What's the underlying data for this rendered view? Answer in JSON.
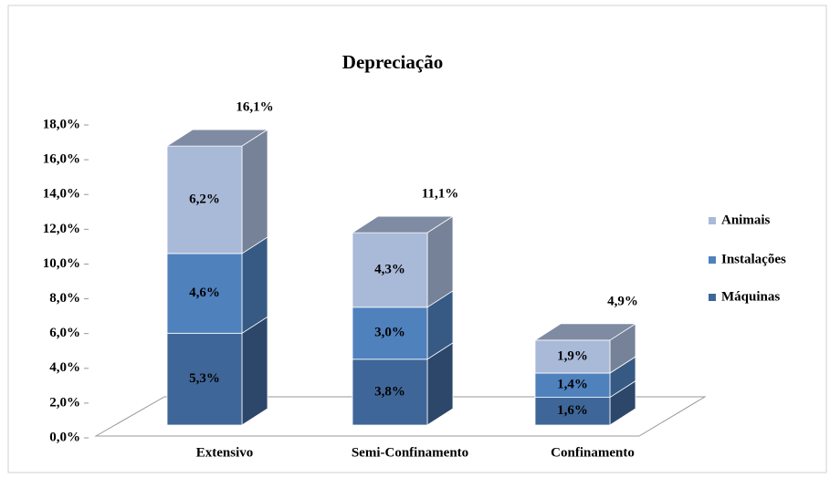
{
  "chart_data": {
    "type": "bar3d_stacked",
    "title": "Depreciação",
    "categories": [
      "Extensivo",
      "Semi-Confinamento",
      "Confinamento"
    ],
    "series": [
      {
        "name": "Máquinas",
        "color": "#3f6698",
        "values": [
          5.3,
          3.8,
          1.6
        ],
        "value_labels": [
          "5,3%",
          "3,8%",
          "1,6%"
        ]
      },
      {
        "name": "Instalações",
        "color": "#4f81bd",
        "values": [
          4.6,
          3.0,
          1.4
        ],
        "value_labels": [
          "4,6%",
          "3,0%",
          "1,4%"
        ]
      },
      {
        "name": "Animais",
        "color": "#a9b9d8",
        "values": [
          6.2,
          4.3,
          1.9
        ],
        "value_labels": [
          "6,2%",
          "4,3%",
          "1,9%"
        ]
      }
    ],
    "totals": {
      "values": [
        16.1,
        11.1,
        4.9
      ],
      "value_labels": [
        "16,1%",
        "11,1%",
        "4,9%"
      ]
    },
    "ylim": [
      0,
      18
    ],
    "yticks": [
      {
        "value": 0,
        "label": "0,0%"
      },
      {
        "value": 2,
        "label": "2,0%"
      },
      {
        "value": 4,
        "label": "4,0%"
      },
      {
        "value": 6,
        "label": "6,0%"
      },
      {
        "value": 8,
        "label": "8,0%"
      },
      {
        "value": 10,
        "label": "10,0%"
      },
      {
        "value": 12,
        "label": "12,0%"
      },
      {
        "value": 14,
        "label": "14,0%"
      },
      {
        "value": 16,
        "label": "16,0%"
      },
      {
        "value": 18,
        "label": "18,0%"
      }
    ],
    "legend": "right"
  }
}
